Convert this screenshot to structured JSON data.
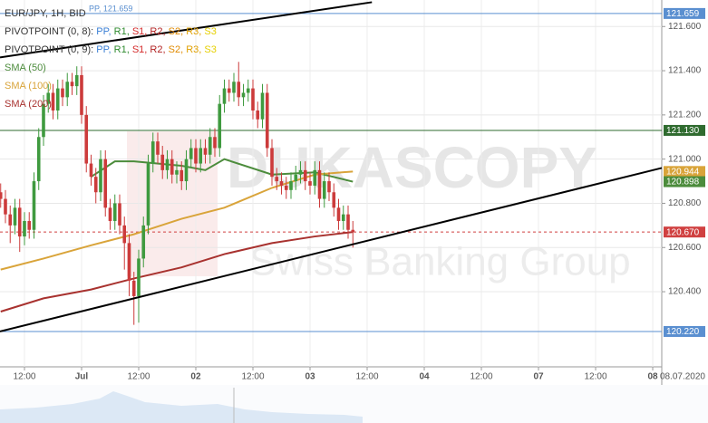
{
  "chart_data": {
    "type": "candlestick",
    "title": "EUR/JPY, 1H, BID",
    "x": [
      -17,
      -16,
      -15,
      -14,
      -13,
      -12,
      -11,
      -10,
      -9,
      -8,
      -7,
      -6,
      -5,
      -4,
      -3,
      -2,
      -1,
      0,
      1,
      2,
      3,
      4,
      5,
      6,
      7,
      8,
      9,
      10,
      11,
      12,
      13,
      14,
      15,
      16,
      17,
      18,
      19,
      20,
      21,
      22,
      23,
      24,
      25,
      26,
      27,
      28,
      29,
      30,
      31,
      32,
      33,
      34,
      35,
      36,
      37,
      38,
      39,
      40,
      41,
      42,
      43,
      44,
      45,
      46,
      47,
      48,
      49,
      50,
      51,
      52,
      53,
      54,
      55,
      56,
      57
    ],
    "open": [
      120.85,
      120.82,
      120.75,
      120.7,
      120.78,
      120.65,
      120.72,
      120.68,
      120.9,
      121.1,
      121.25,
      121.3,
      121.22,
      121.32,
      121.28,
      121.35,
      121.33,
      121.38,
      121.2,
      120.98,
      120.92,
      120.85,
      121.0,
      120.78,
      120.72,
      120.8,
      120.7,
      120.62,
      120.45,
      120.38,
      120.55,
      120.7,
      120.98,
      121.08,
      121.02,
      120.95,
      121.0,
      120.93,
      120.95,
      120.9,
      121.0,
      121.05,
      120.98,
      121.05,
      121.02,
      121.1,
      121.05,
      121.25,
      121.32,
      121.3,
      121.35,
      121.28,
      121.3,
      121.32,
      121.22,
      121.18,
      121.3,
      121.05,
      120.92,
      120.9,
      120.88,
      120.86,
      120.9,
      120.93,
      120.95,
      120.9,
      120.88,
      120.95,
      120.82,
      120.9,
      120.85,
      120.78,
      120.72,
      120.75,
      120.68
    ],
    "high": [
      120.89,
      120.86,
      120.79,
      120.82,
      120.82,
      120.76,
      120.76,
      120.94,
      121.14,
      121.29,
      121.34,
      121.34,
      121.36,
      121.36,
      121.39,
      121.39,
      121.42,
      121.42,
      121.24,
      121.02,
      120.96,
      121.04,
      121.04,
      120.82,
      120.84,
      120.84,
      120.74,
      120.66,
      120.49,
      120.59,
      120.74,
      121.02,
      121.12,
      121.12,
      121.06,
      121.04,
      121.04,
      120.99,
      120.99,
      121.04,
      121.09,
      121.09,
      121.09,
      121.09,
      121.14,
      121.14,
      121.29,
      121.36,
      121.36,
      121.39,
      121.44,
      121.34,
      121.36,
      121.36,
      121.26,
      121.34,
      121.34,
      121.09,
      120.96,
      120.94,
      120.92,
      120.94,
      120.97,
      120.99,
      120.99,
      120.94,
      120.99,
      120.99,
      120.94,
      120.94,
      120.89,
      120.82,
      120.79,
      120.79,
      120.72
    ],
    "low": [
      120.78,
      120.71,
      120.62,
      120.66,
      120.58,
      120.61,
      120.64,
      120.64,
      120.86,
      121.06,
      121.21,
      121.18,
      121.18,
      121.24,
      121.24,
      121.29,
      121.29,
      121.16,
      120.94,
      120.88,
      120.8,
      120.81,
      120.74,
      120.68,
      120.68,
      120.66,
      120.5,
      120.38,
      120.25,
      120.26,
      120.51,
      120.66,
      120.94,
      120.98,
      120.91,
      120.91,
      120.89,
      120.89,
      120.86,
      120.86,
      120.96,
      120.94,
      120.94,
      120.98,
      120.98,
      121.01,
      121.01,
      121.21,
      121.26,
      121.26,
      121.24,
      121.24,
      121.26,
      121.18,
      121.14,
      121.14,
      121.01,
      120.88,
      120.86,
      120.84,
      120.82,
      120.82,
      120.86,
      120.89,
      120.86,
      120.84,
      120.84,
      120.78,
      120.78,
      120.81,
      120.74,
      120.68,
      120.68,
      120.64,
      120.6
    ],
    "close": [
      120.82,
      120.75,
      120.7,
      120.78,
      120.65,
      120.72,
      120.68,
      120.9,
      121.1,
      121.25,
      121.3,
      121.22,
      121.32,
      121.28,
      121.35,
      121.33,
      121.38,
      121.2,
      120.98,
      120.92,
      120.85,
      121.0,
      120.78,
      120.72,
      120.8,
      120.7,
      120.62,
      120.45,
      120.38,
      120.55,
      120.7,
      120.98,
      121.08,
      121.02,
      120.95,
      121.0,
      120.93,
      120.95,
      120.9,
      121.0,
      121.05,
      120.98,
      121.05,
      121.02,
      121.1,
      121.05,
      121.25,
      121.32,
      121.3,
      121.35,
      121.28,
      121.3,
      121.32,
      121.22,
      121.18,
      121.3,
      121.05,
      120.92,
      120.9,
      120.88,
      120.86,
      120.9,
      120.93,
      120.95,
      120.9,
      120.88,
      120.95,
      120.82,
      120.9,
      120.85,
      120.78,
      120.72,
      120.75,
      120.68,
      120.67
    ],
    "up_color": "#3f9a3f",
    "down_color": "#cc3b3b",
    "xlim": [
      -17.14,
      121.9
    ],
    "xticks": [
      {
        "value": -12,
        "label": "12:00"
      },
      {
        "value": 0,
        "label": "Jul"
      },
      {
        "value": 12,
        "label": "12:00"
      },
      {
        "value": 24,
        "label": "02"
      },
      {
        "value": 36,
        "label": "12:00"
      },
      {
        "value": 48,
        "label": "03"
      },
      {
        "value": 60,
        "label": "12:00"
      },
      {
        "value": 72,
        "label": "04"
      },
      {
        "value": 84,
        "label": "12:00"
      },
      {
        "value": 96,
        "label": "07"
      },
      {
        "value": 108,
        "label": "12:00"
      },
      {
        "value": 120,
        "label": "08"
      }
    ],
    "date_label": "08.07.2020",
    "ylim": [
      120.06,
      121.72
    ],
    "yticks": [
      {
        "value": 120.4,
        "label": "120.400"
      },
      {
        "value": 120.6,
        "label": "120.600"
      },
      {
        "value": 120.8,
        "label": "120.800"
      },
      {
        "value": 121.0,
        "label": "121.000"
      },
      {
        "value": 121.2,
        "label": "121.200"
      },
      {
        "value": 121.4,
        "label": "121.400"
      },
      {
        "value": 121.6,
        "label": "121.600"
      }
    ],
    "grid": true,
    "pivot_legends": [
      {
        "label": "PIVOTPOINT (0, 8):",
        "items": [
          {
            "text": "PP,",
            "color": "#3a7fd5"
          },
          {
            "text": "R1,",
            "color": "#2e8b2e"
          },
          {
            "text": "S1,",
            "color": "#d42a2a"
          },
          {
            "text": "R2,",
            "color": "#b22222"
          },
          {
            "text": "S2,",
            "color": "#e08a00"
          },
          {
            "text": "R3,",
            "color": "#e0a000"
          },
          {
            "text": "S3",
            "color": "#e6d000"
          }
        ]
      },
      {
        "label": "PIVOTPOINT (0, 9):",
        "items": [
          {
            "text": "PP,",
            "color": "#3a7fd5"
          },
          {
            "text": "R1,",
            "color": "#2e8b2e"
          },
          {
            "text": "S1,",
            "color": "#d42a2a"
          },
          {
            "text": "R2,",
            "color": "#b22222"
          },
          {
            "text": "S2,",
            "color": "#e08a00"
          },
          {
            "text": "R3,",
            "color": "#e0a000"
          },
          {
            "text": "S3",
            "color": "#e6d000"
          }
        ]
      }
    ],
    "series": [
      {
        "name": "SMA (50)",
        "color": "#4c8c3c",
        "x": [
          2,
          7,
          11,
          21,
          26,
          30,
          40,
          49,
          57
        ],
        "values": [
          120.92,
          120.99,
          120.99,
          120.97,
          120.95,
          121.0,
          120.93,
          120.94,
          120.898
        ]
      },
      {
        "name": "SMA (100)",
        "color": "#d9a43a",
        "x": [
          -17,
          -8,
          2,
          11,
          21,
          30,
          40,
          49,
          57
        ],
        "values": [
          120.5,
          120.55,
          120.61,
          120.66,
          120.73,
          120.78,
          120.87,
          120.93,
          120.944
        ]
      },
      {
        "name": "SMA (200)",
        "color": "#a8322f",
        "x": [
          -17,
          -8,
          2,
          11,
          21,
          30,
          40,
          49,
          57
        ],
        "values": [
          120.31,
          120.37,
          120.41,
          120.46,
          120.51,
          120.57,
          120.62,
          120.65,
          120.67
        ]
      }
    ],
    "trend_lines": [
      {
        "x": [
          -17.14,
          61
        ],
        "y": [
          121.46,
          121.71
        ]
      },
      {
        "x": [
          -17.14,
          121.9
        ],
        "y": [
          120.22,
          120.96
        ]
      }
    ],
    "levels": [
      {
        "value": 121.659,
        "color": "#5a8fd0",
        "style": "solid",
        "label": "PP, 121.659"
      },
      {
        "value": 121.13,
        "color": "#2f6b2f",
        "style": "solid"
      },
      {
        "value": 120.67,
        "color": "#d04040",
        "style": "dashed"
      },
      {
        "value": 120.22,
        "color": "#5a8fd0",
        "style": "solid"
      }
    ],
    "price_tags": [
      {
        "value": 121.659,
        "label": "121.659",
        "color": "#5a8fd0"
      },
      {
        "value": 121.13,
        "label": "121.130",
        "color": "#2f6b2f"
      },
      {
        "value": 120.944,
        "label": "120.944",
        "color": "#d9a43a"
      },
      {
        "value": 120.898,
        "label": "120.898",
        "color": "#4c8c3c"
      },
      {
        "value": 120.67,
        "label": "120.670",
        "color": "#d04040"
      },
      {
        "value": 120.22,
        "label": "120.220",
        "color": "#5a8fd0"
      }
    ],
    "watermark": [
      "DUKASCOPY",
      "Swiss Banking Group"
    ]
  }
}
